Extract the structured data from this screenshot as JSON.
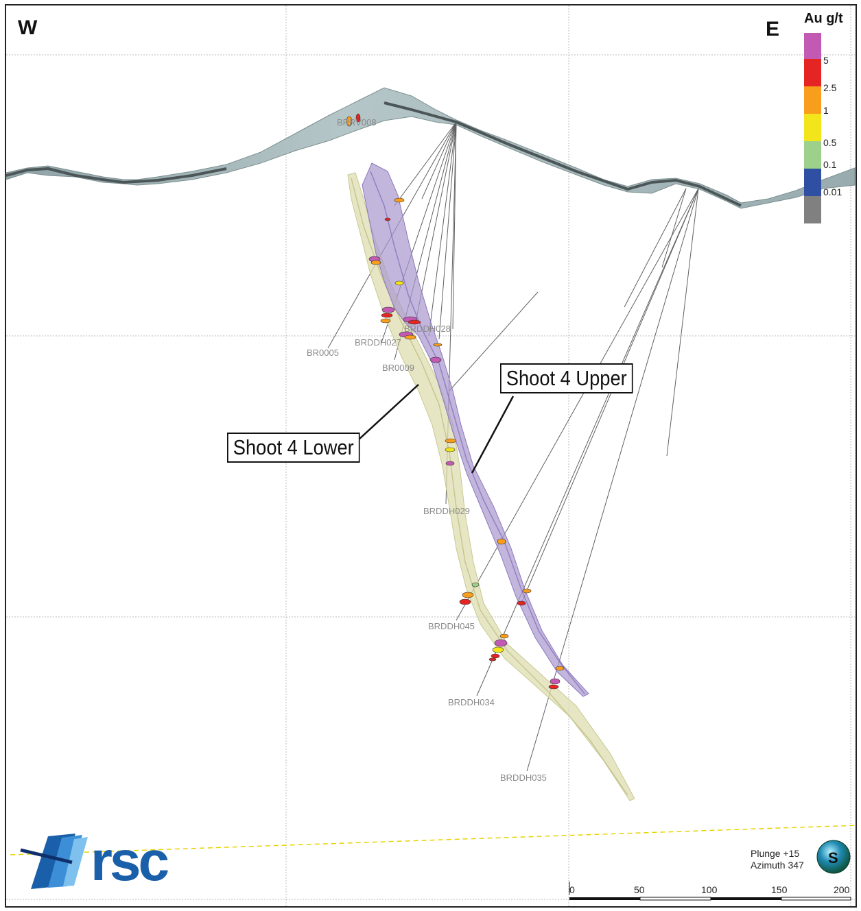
{
  "compass": {
    "west": "W",
    "east": "E"
  },
  "legend": {
    "title": "Au g/t",
    "bins": [
      {
        "label": "5",
        "color": "#c259b3"
      },
      {
        "label": "2.5",
        "color": "#e52424"
      },
      {
        "label": "1",
        "color": "#f99d1c"
      },
      {
        "label": "0.5",
        "color": "#f3e51b"
      },
      {
        "label": "0.1",
        "color": "#9dd08a"
      },
      {
        "label": "0.01",
        "color": "#2f4fa2"
      },
      {
        "label": "",
        "color": "#808080"
      }
    ]
  },
  "callouts": {
    "upper": "Shoot 4 Upper",
    "lower": "Shoot 4 Lower"
  },
  "drillholes": [
    {
      "name": "BRRV008"
    },
    {
      "name": "BRDDH028"
    },
    {
      "name": "BRDDH027"
    },
    {
      "name": "BR0005"
    },
    {
      "name": "BR0009"
    },
    {
      "name": "BRDDH029"
    },
    {
      "name": "BRDDH045"
    },
    {
      "name": "BRDDH034"
    },
    {
      "name": "BRDDH035"
    }
  ],
  "orientation": {
    "plunge": "Plunge +15",
    "azimuth": "Azimuth 347",
    "globe_letter": "S"
  },
  "scale_bar": {
    "ticks": [
      "0",
      "50",
      "100",
      "150",
      "200"
    ]
  },
  "logo": {
    "text": "rsc"
  },
  "colors": {
    "topography": "#a9bcbe",
    "shoot_upper": "#a897cf",
    "shoot_lower": "#dedeb0",
    "trace": "#555555",
    "level_line": "#e8d200"
  }
}
